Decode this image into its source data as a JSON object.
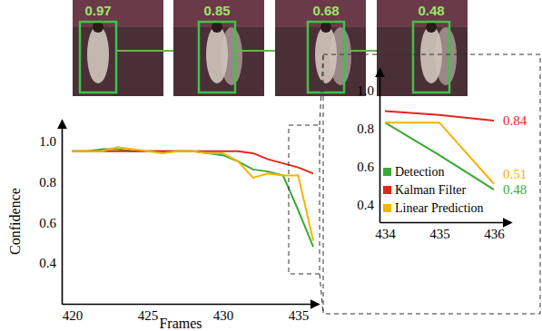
{
  "frames": {
    "confidences": [
      0.97,
      0.85,
      0.68,
      0.48
    ]
  },
  "chart_data": [
    {
      "type": "line",
      "x_label": "Frames",
      "y_label": "Confidence",
      "x": [
        420,
        421,
        422,
        423,
        424,
        425,
        426,
        427,
        428,
        429,
        430,
        431,
        432,
        433,
        434,
        435,
        436
      ],
      "series": [
        {
          "color": "#3aa935",
          "values": [
            0.95,
            0.95,
            0.96,
            0.96,
            0.95,
            0.95,
            0.95,
            0.95,
            0.95,
            0.94,
            0.93,
            0.9,
            0.86,
            0.85,
            0.83,
            0.66,
            0.48
          ]
        },
        {
          "color": "#e8231d",
          "values": [
            0.95,
            0.95,
            0.95,
            0.95,
            0.95,
            0.95,
            0.95,
            0.95,
            0.95,
            0.95,
            0.95,
            0.95,
            0.94,
            0.91,
            0.89,
            0.87,
            0.84
          ]
        },
        {
          "color": "#f5b301",
          "values": [
            0.95,
            0.95,
            0.95,
            0.97,
            0.96,
            0.95,
            0.94,
            0.95,
            0.95,
            0.94,
            0.94,
            0.9,
            0.82,
            0.84,
            0.83,
            0.83,
            0.51
          ]
        }
      ],
      "xlim": [
        419.3,
        436.3
      ],
      "xticks": [
        420,
        425,
        430,
        435
      ],
      "ylim": [
        0.2,
        1.1
      ],
      "yticks": [
        0.4,
        0.6,
        0.8,
        {
          "value": 1,
          "label": "1.0"
        }
      ]
    },
    {
      "type": "line",
      "x": [
        434,
        435,
        436
      ],
      "series": [
        {
          "name": "Detection",
          "color": "#3aa935",
          "values": [
            0.83,
            0.66,
            0.48
          ]
        },
        {
          "name": "Kalman Filter",
          "color": "#e8231d",
          "values": [
            0.89,
            0.87,
            0.84
          ]
        },
        {
          "name": "Linear Prediction",
          "color": "#f5b301",
          "values": [
            0.83,
            0.83,
            0.51
          ]
        }
      ],
      "xlim": [
        433.9,
        436.3
      ],
      "xticks": [
        434,
        435,
        436
      ],
      "ylim": [
        0.31,
        1.11
      ],
      "yticks": [
        0.4,
        0.6,
        0.8,
        {
          "value": 1,
          "label": "1.0"
        }
      ],
      "legend": "lower left",
      "annotations": [
        {
          "text": "0.84",
          "x": 436,
          "y": 0.84,
          "color": "#e8231d"
        },
        {
          "text": "0.51",
          "x": 436,
          "y": 0.51,
          "color": "#f5b301"
        },
        {
          "text": "0.48",
          "x": 436,
          "y": 0.48,
          "color": "#3aa935"
        }
      ]
    }
  ]
}
